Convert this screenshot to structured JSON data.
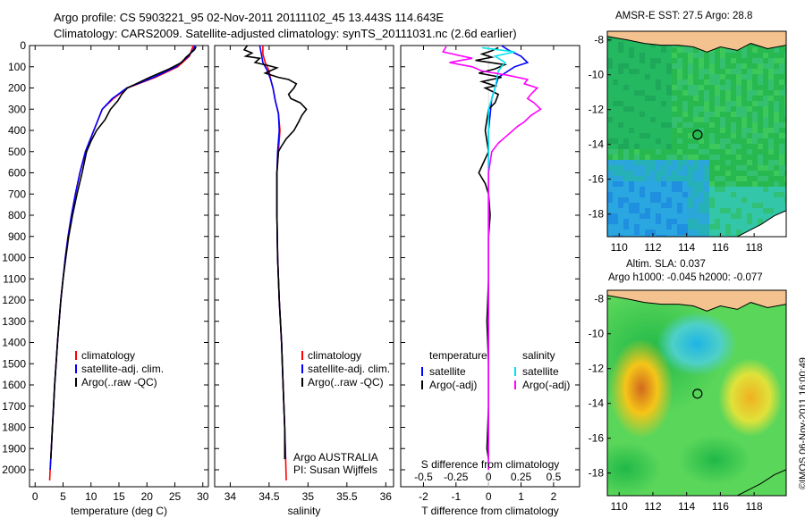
{
  "titles": {
    "line1": "Argo profile: CS 5903221_95 02-Nov-2011 20111102_45 13.443S 114.643E",
    "line2": "Climatology: CARS2009. Satellite-adjusted climatology: synTS_20111031.nc (2.6d earlier)",
    "sst": "AMSR-E SST: 27.5 Argo: 28.8",
    "sla1": "Altim. SLA: 0.037",
    "sla2": "Argo h1000: -0.045 h2000: -0.077",
    "stamp": "©IMOS 06-Nov-2011 16:00:49"
  },
  "colors": {
    "clim": "#ff0000",
    "sat": "#0000ff",
    "argo": "#000000",
    "satSal": "#00e5ee",
    "argoSal": "#ff00ff",
    "land": "#f4c28f"
  },
  "chart_data": [
    {
      "type": "line",
      "id": "temperature",
      "xlabel": "temperature (deg C)",
      "ylabel": "",
      "xlim": [
        -1,
        31
      ],
      "ylim": [
        2080,
        0
      ],
      "xticks": [
        0,
        5,
        10,
        15,
        20,
        25,
        30
      ],
      "yticks": [
        0,
        100,
        200,
        300,
        400,
        500,
        600,
        700,
        800,
        900,
        1000,
        1100,
        1200,
        1300,
        1400,
        1500,
        1600,
        1700,
        1800,
        1900,
        2000
      ],
      "legend": [
        "climatology",
        "satellite-adj. clim.",
        "Argo(..raw -QC)"
      ],
      "series": [
        {
          "name": "climatology",
          "color": "clim",
          "points": [
            [
              28.3,
              0
            ],
            [
              28,
              20
            ],
            [
              27.6,
              50
            ],
            [
              25.5,
              100
            ],
            [
              21.5,
              150
            ],
            [
              16.5,
              200
            ],
            [
              14,
              250
            ],
            [
              12,
              300
            ],
            [
              10.5,
              400
            ],
            [
              9,
              500
            ],
            [
              8,
              600
            ],
            [
              7.2,
              700
            ],
            [
              6.5,
              800
            ],
            [
              5.9,
              900
            ],
            [
              5.4,
              1000
            ],
            [
              5,
              1100
            ],
            [
              4.6,
              1200
            ],
            [
              4.3,
              1300
            ],
            [
              4,
              1400
            ],
            [
              3.75,
              1500
            ],
            [
              3.5,
              1600
            ],
            [
              3.3,
              1700
            ],
            [
              3.1,
              1800
            ],
            [
              2.9,
              1900
            ],
            [
              2.7,
              2000
            ],
            [
              2.6,
              2050
            ]
          ]
        },
        {
          "name": "satellite-adj. clim.",
          "color": "sat",
          "points": [
            [
              28.6,
              0
            ],
            [
              28.3,
              20
            ],
            [
              27.4,
              50
            ],
            [
              25.2,
              100
            ],
            [
              21.2,
              150
            ],
            [
              16.4,
              200
            ],
            [
              13.8,
              250
            ],
            [
              12,
              300
            ],
            [
              10.5,
              400
            ],
            [
              9,
              500
            ],
            [
              8,
              600
            ],
            [
              7.2,
              700
            ],
            [
              6.5,
              800
            ],
            [
              5.9,
              900
            ],
            [
              5.4,
              1000
            ],
            [
              5,
              1100
            ],
            [
              4.6,
              1200
            ],
            [
              4.3,
              1300
            ],
            [
              4,
              1400
            ],
            [
              3.75,
              1500
            ],
            [
              3.5,
              1600
            ],
            [
              3.3,
              1700
            ],
            [
              3.1,
              1800
            ],
            [
              2.9,
              1900
            ],
            [
              2.7,
              2000
            ]
          ]
        },
        {
          "name": "Argo(..raw -QC)",
          "color": "argo",
          "points": [
            [
              28.8,
              5
            ],
            [
              28.5,
              20
            ],
            [
              27,
              55
            ],
            [
              26.2,
              80
            ],
            [
              24,
              110
            ],
            [
              20.5,
              150
            ],
            [
              16.5,
              200
            ],
            [
              15.5,
              230
            ],
            [
              14.8,
              260
            ],
            [
              13.5,
              300
            ],
            [
              12.5,
              350
            ],
            [
              11,
              400
            ],
            [
              10,
              450
            ],
            [
              9.2,
              500
            ],
            [
              8.4,
              600
            ],
            [
              7.5,
              700
            ],
            [
              6.7,
              800
            ],
            [
              6,
              900
            ],
            [
              5.5,
              1000
            ],
            [
              5,
              1100
            ],
            [
              4.6,
              1200
            ],
            [
              4.3,
              1300
            ],
            [
              4,
              1400
            ],
            [
              3.75,
              1500
            ],
            [
              3.5,
              1600
            ],
            [
              3.3,
              1700
            ],
            [
              3.1,
              1800
            ],
            [
              2.9,
              1900
            ],
            [
              2.8,
              1950
            ]
          ]
        }
      ]
    },
    {
      "type": "line",
      "id": "salinity",
      "xlabel": "salinity",
      "ylabel": "",
      "xlim": [
        33.8,
        36.1
      ],
      "ylim": [
        2080,
        0
      ],
      "xticks": [
        34,
        34.5,
        35,
        35.5,
        36
      ],
      "legend": [
        "climatology",
        "satellite-adj. clim.",
        "Argo(..raw -QC)"
      ],
      "annotation": [
        "Argo AUSTRALIA",
        "PI: Susan Wijffels"
      ],
      "series": [
        {
          "name": "climatology",
          "color": "clim",
          "points": [
            [
              34.42,
              0
            ],
            [
              34.42,
              40
            ],
            [
              34.45,
              80
            ],
            [
              34.5,
              120
            ],
            [
              34.52,
              160
            ],
            [
              34.55,
              200
            ],
            [
              34.58,
              260
            ],
            [
              34.62,
              320
            ],
            [
              34.64,
              400
            ],
            [
              34.62,
              500
            ],
            [
              34.6,
              600
            ],
            [
              34.6,
              800
            ],
            [
              34.61,
              1000
            ],
            [
              34.63,
              1200
            ],
            [
              34.66,
              1400
            ],
            [
              34.68,
              1600
            ],
            [
              34.7,
              1800
            ],
            [
              34.71,
              1900
            ],
            [
              34.72,
              2050
            ]
          ]
        },
        {
          "name": "satellite-adj. clim.",
          "color": "sat",
          "points": [
            [
              34.38,
              0
            ],
            [
              34.4,
              40
            ],
            [
              34.42,
              80
            ],
            [
              34.48,
              120
            ],
            [
              34.52,
              160
            ],
            [
              34.55,
              200
            ],
            [
              34.58,
              260
            ],
            [
              34.62,
              320
            ],
            [
              34.63,
              400
            ],
            [
              34.61,
              500
            ],
            [
              34.6,
              600
            ],
            [
              34.6,
              800
            ],
            [
              34.61,
              1000
            ],
            [
              34.63,
              1200
            ],
            [
              34.66,
              1400
            ],
            [
              34.68,
              1600
            ],
            [
              34.7,
              1800
            ],
            [
              34.71,
              1950
            ]
          ]
        },
        {
          "name": "Argo(..raw -QC)",
          "color": "argo",
          "points": [
            [
              34.22,
              0
            ],
            [
              34.18,
              20
            ],
            [
              34.28,
              35
            ],
            [
              34.2,
              50
            ],
            [
              34.38,
              60
            ],
            [
              34.32,
              80
            ],
            [
              34.5,
              95
            ],
            [
              34.6,
              105
            ],
            [
              34.45,
              130
            ],
            [
              34.62,
              150
            ],
            [
              34.75,
              160
            ],
            [
              34.85,
              180
            ],
            [
              34.82,
              200
            ],
            [
              34.75,
              230
            ],
            [
              34.78,
              250
            ],
            [
              34.9,
              270
            ],
            [
              34.98,
              300
            ],
            [
              34.92,
              330
            ],
            [
              34.88,
              360
            ],
            [
              34.85,
              380
            ],
            [
              34.82,
              400
            ],
            [
              34.72,
              440
            ],
            [
              34.65,
              480
            ],
            [
              34.62,
              500
            ],
            [
              34.6,
              600
            ],
            [
              34.6,
              800
            ],
            [
              34.61,
              1000
            ],
            [
              34.63,
              1200
            ],
            [
              34.66,
              1400
            ],
            [
              34.68,
              1600
            ],
            [
              34.7,
              1800
            ],
            [
              34.7,
              1950
            ]
          ]
        }
      ]
    },
    {
      "type": "line",
      "id": "difference",
      "xlabel": "T difference from climatology",
      "xlabel_top": "S difference from climatology",
      "xlim": [
        -2.7,
        2.8
      ],
      "ylim": [
        2080,
        0
      ],
      "xticks": [
        -2,
        -1,
        0,
        1,
        2
      ],
      "xticks_s": [
        "-0.5",
        "-0.25",
        "0",
        "0.25",
        "0.5"
      ],
      "xticks_s_pos": [
        -2,
        -1,
        0,
        1,
        2
      ],
      "legend_headers": [
        "temperature",
        "salinity"
      ],
      "legend": [
        "satellite",
        "Argo(-adj)",
        "satellite",
        "Argo(-adj)"
      ],
      "series": [
        {
          "name": "temperature satellite",
          "color": "sat",
          "points": [
            [
              0.4,
              0
            ],
            [
              0.6,
              20
            ],
            [
              1,
              50
            ],
            [
              1.2,
              80
            ],
            [
              0.8,
              100
            ],
            [
              0.3,
              150
            ],
            [
              0.1,
              250
            ],
            [
              0,
              400
            ],
            [
              0,
              2000
            ]
          ]
        },
        {
          "name": "temperature Argo(-adj)",
          "color": "argo",
          "points": [
            [
              0.3,
              10
            ],
            [
              0.1,
              25
            ],
            [
              -0.2,
              40
            ],
            [
              0.1,
              55
            ],
            [
              -0.4,
              70
            ],
            [
              0.5,
              90
            ],
            [
              0.2,
              110
            ],
            [
              -0.3,
              130
            ],
            [
              0.4,
              150
            ],
            [
              -0.2,
              170
            ],
            [
              0.2,
              190
            ],
            [
              -0.1,
              200
            ],
            [
              0.3,
              230
            ],
            [
              0.2,
              270
            ],
            [
              0,
              300
            ],
            [
              -0.1,
              400
            ],
            [
              0,
              500
            ],
            [
              -0.3,
              600
            ],
            [
              -0.1,
              650
            ],
            [
              0,
              700
            ],
            [
              0.05,
              800
            ],
            [
              0,
              900
            ],
            [
              0,
              1100
            ],
            [
              -0.05,
              1300
            ],
            [
              0,
              1500
            ],
            [
              0,
              1700
            ],
            [
              -0.05,
              1900
            ],
            [
              0,
              1950
            ]
          ]
        },
        {
          "name": "salinity satellite",
          "color": "satSal",
          "points": [
            [
              -0.2,
              10
            ],
            [
              0.8,
              30
            ],
            [
              0.2,
              50
            ],
            [
              0.5,
              80
            ],
            [
              0.3,
              120
            ],
            [
              0.2,
              200
            ],
            [
              0,
              300
            ],
            [
              0,
              400
            ],
            [
              0,
              2000
            ]
          ]
        },
        {
          "name": "salinity Argo(-adj)",
          "color": "argoSal",
          "points": [
            [
              -1.3,
              5
            ],
            [
              -1.4,
              30
            ],
            [
              -0.5,
              60
            ],
            [
              -1.2,
              80
            ],
            [
              -0.5,
              100
            ],
            [
              -0.2,
              120
            ],
            [
              0.6,
              140
            ],
            [
              1.2,
              160
            ],
            [
              1.1,
              180
            ],
            [
              1.5,
              200
            ],
            [
              1.3,
              230
            ],
            [
              1.2,
              250
            ],
            [
              1.4,
              270
            ],
            [
              1.6,
              300
            ],
            [
              1.3,
              330
            ],
            [
              1.1,
              360
            ],
            [
              0.9,
              380
            ],
            [
              0.6,
              420
            ],
            [
              0.3,
              460
            ],
            [
              0.1,
              500
            ],
            [
              0,
              600
            ],
            [
              0,
              2000
            ]
          ]
        }
      ]
    },
    {
      "type": "heatmap",
      "id": "sst_map",
      "title": "AMSR-E SST: 27.5 Argo: 28.8",
      "xlim": [
        109.3,
        119.9
      ],
      "ylim": [
        -19.3,
        -7.5
      ],
      "xticks": [
        110,
        112,
        114,
        116,
        118
      ],
      "yticks": [
        -8,
        -10,
        -12,
        -14,
        -16,
        -18
      ],
      "marker": [
        114.643,
        -13.443
      ]
    },
    {
      "type": "heatmap",
      "id": "sla_map",
      "title": "Altim. SLA: 0.037 / Argo h1000: -0.045 h2000: -0.077",
      "xlim": [
        109.3,
        119.9
      ],
      "ylim": [
        -19.3,
        -7.5
      ],
      "xticks": [
        110,
        112,
        114,
        116,
        118
      ],
      "yticks": [
        -8,
        -10,
        -12,
        -14,
        -16,
        -18
      ],
      "marker": [
        114.643,
        -13.443
      ]
    }
  ]
}
